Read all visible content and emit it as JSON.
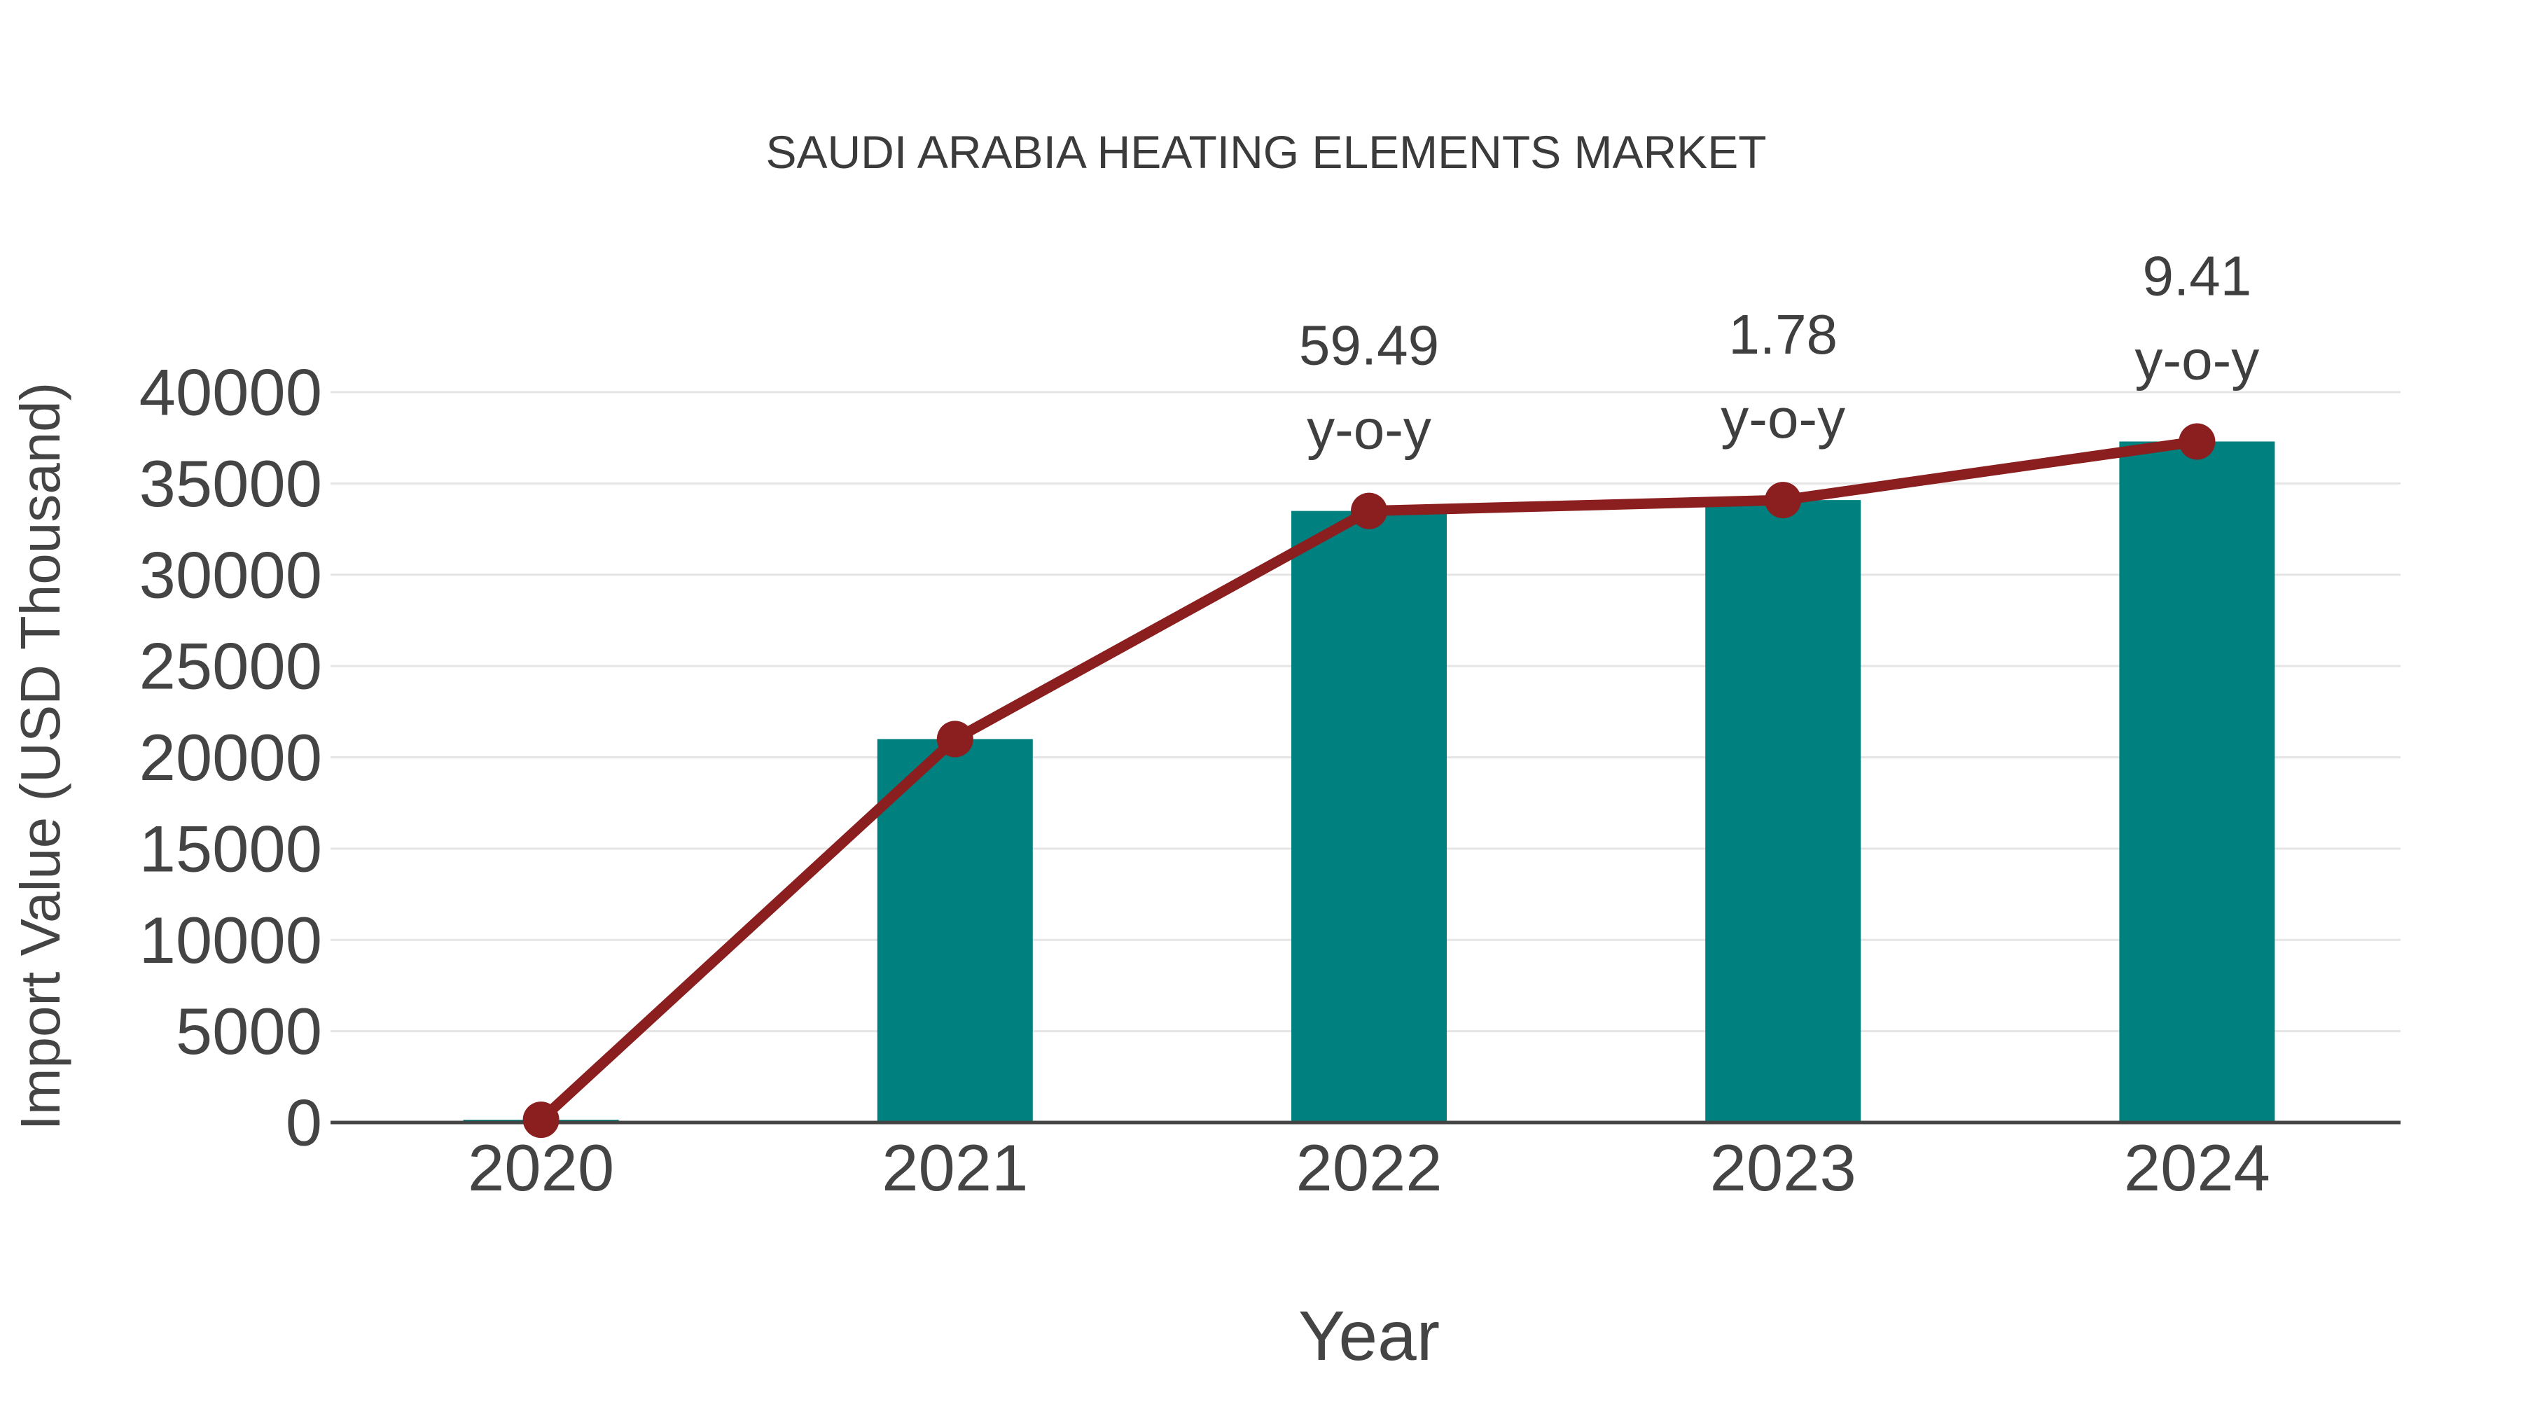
{
  "colors": {
    "background": "#ffffff",
    "bar_fill": "#00807E",
    "line_stroke": "#8B1E1E",
    "marker_fill": "#8B1E1E",
    "gridline": "#e5e5e5",
    "axis_line": "#444444",
    "tick_text": "#444444",
    "axis_title_text": "#444444",
    "title_text": "#3b3b3b",
    "annotation_text": "#3f3f3f"
  },
  "chart_data": {
    "type": "bar",
    "overlay_type": "line",
    "title": "SAUDI ARABIA HEATING ELEMENTS MARKET",
    "xlabel": "Year",
    "ylabel": "Import Value (USD Thousand)",
    "categories": [
      "2020",
      "2021",
      "2022",
      "2023",
      "2024"
    ],
    "series": [
      {
        "name": "Import Value bars",
        "type": "bar",
        "values": [
          150,
          21000,
          33493,
          34089,
          37297
        ]
      },
      {
        "name": "Import Value line",
        "type": "line",
        "values": [
          150,
          21000,
          33493,
          34089,
          37297
        ]
      }
    ],
    "annotations": [
      {
        "category": "2022",
        "value_text": "59.49",
        "unit_text": "y-o-y"
      },
      {
        "category": "2023",
        "value_text": "1.78",
        "unit_text": "y-o-y"
      },
      {
        "category": "2024",
        "value_text": "9.41",
        "unit_text": "y-o-y"
      }
    ],
    "ylim": [
      0,
      40000
    ],
    "ytick_step": 5000,
    "yticks": [
      0,
      5000,
      10000,
      15000,
      20000,
      25000,
      30000,
      35000,
      40000
    ],
    "grid": "horizontal",
    "legend": "none"
  }
}
